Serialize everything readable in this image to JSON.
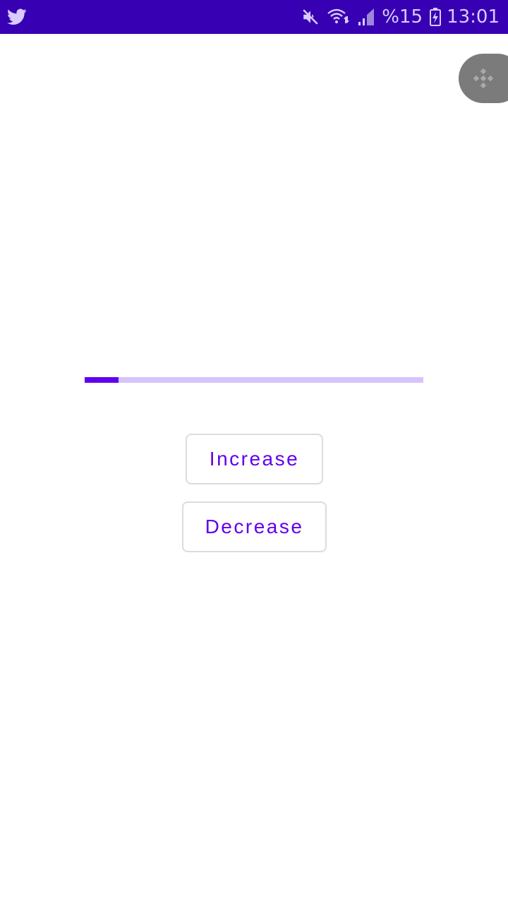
{
  "status_bar": {
    "left_icon": "twitter-icon",
    "icons": [
      "mute-icon",
      "wifi-icon",
      "signal-icon",
      "battery-icon"
    ],
    "battery_text": "%15",
    "time": "13:01",
    "background_color": "#3700b3",
    "icon_color": "#d9cbff"
  },
  "floating_bubble": {
    "icon": "binance-icon",
    "color": "#7b7b7b"
  },
  "progress": {
    "fraction": 0.1,
    "track_color": "#d6c3fb",
    "fill_color": "#6200ee"
  },
  "buttons": {
    "increase_label": "Increase",
    "decrease_label": "Decrease",
    "text_color": "#6200ee"
  }
}
